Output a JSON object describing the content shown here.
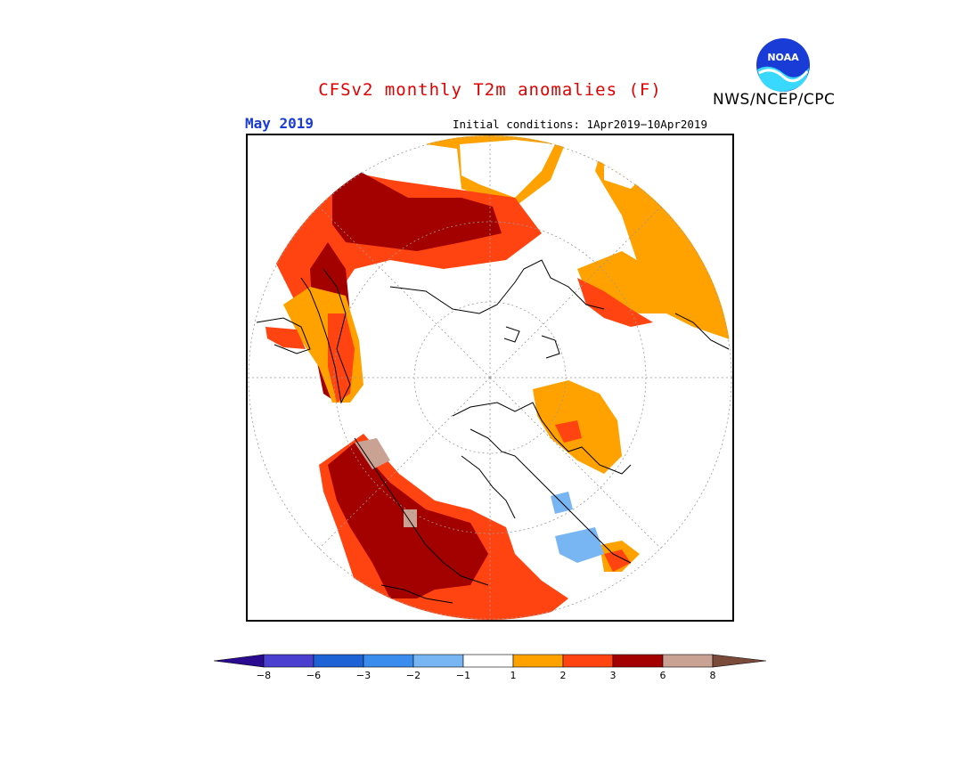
{
  "title": "CFSv2 monthly T2m anomalies (F)",
  "agency": "NWS/NCEP/CPC",
  "logo_text": "NOAA",
  "period": "May 2019",
  "initial_conditions": "Initial conditions: 1Apr2019−10Apr2019",
  "colors": {
    "title": "#e00000",
    "period": "#1a3cd6",
    "land_outline": "#000000",
    "graticule": "#999999"
  },
  "legend": {
    "bins": [
      {
        "color": "#2a0b8f",
        "role": "below -8"
      },
      {
        "color": "#4a3fcf",
        "role": "-8 to -6"
      },
      {
        "color": "#1e63d6",
        "role": "-6 to -3"
      },
      {
        "color": "#3b8ded",
        "role": "-3 to -2"
      },
      {
        "color": "#77b6f3",
        "role": "-2 to -1"
      },
      {
        "color": "#ffffff",
        "role": "-1 to 1"
      },
      {
        "color": "#ffa200",
        "role": "1 to 2"
      },
      {
        "color": "#ff4411",
        "role": "2 to 3"
      },
      {
        "color": "#a30000",
        "role": "3 to 6"
      },
      {
        "color": "#c9a294",
        "role": "6 to 8"
      },
      {
        "color": "#7a4a3a",
        "role": "above 8"
      }
    ],
    "ticks": [
      "−8",
      "−6",
      "−3",
      "−2",
      "−1",
      "1",
      "2",
      "3",
      "6",
      "8"
    ]
  }
}
